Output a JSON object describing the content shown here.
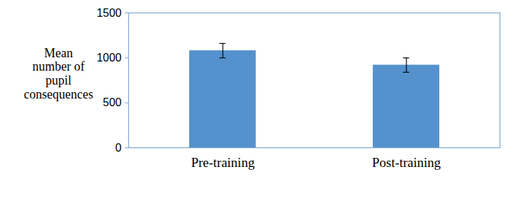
{
  "chart_data": {
    "type": "bar",
    "ylabel": "Mean\nnumber of\npupil\nconsequences",
    "categories": [
      "Pre-training",
      "Post-training"
    ],
    "values": [
      1080,
      920
    ],
    "errors": [
      80,
      80
    ],
    "color": "#5592cd",
    "ylim": [
      0,
      1500
    ],
    "yticks": [
      0,
      500,
      1000,
      1500
    ],
    "grid": false
  }
}
